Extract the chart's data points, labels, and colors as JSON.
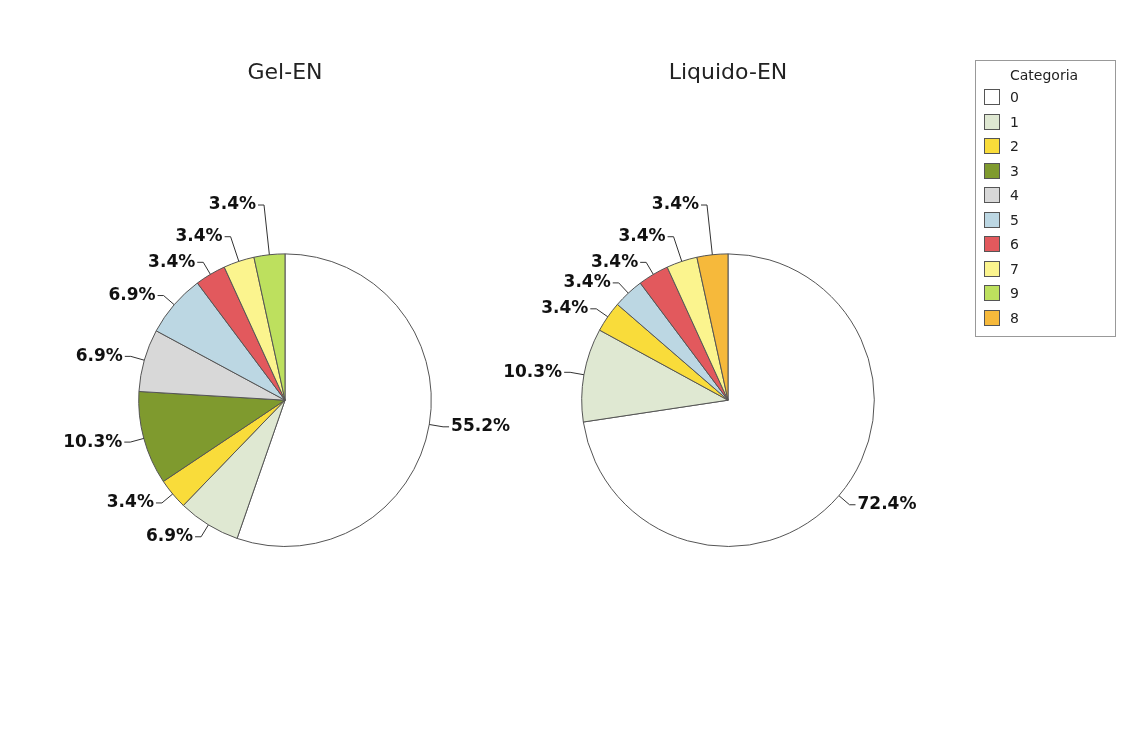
{
  "chart_data": {
    "type": "pie",
    "categories": [
      "0",
      "1",
      "2",
      "3",
      "4",
      "5",
      "6",
      "7",
      "9",
      "8"
    ],
    "colors": [
      "#ffffff",
      "#dfe8d2",
      "#f9dc3a",
      "#7f9a2e",
      "#d8d8d8",
      "#bcd7e3",
      "#e2595d",
      "#fbf48e",
      "#bde05e",
      "#f6b93b"
    ],
    "series": [
      {
        "name": "Gel-EN",
        "values": [
          55.2,
          6.9,
          3.4,
          10.3,
          6.9,
          6.9,
          3.4,
          3.4,
          3.4,
          0
        ],
        "value_labels": [
          "55.2%",
          "6.9%",
          "3.4%",
          "10.3%",
          "6.9%",
          "6.9%",
          "3.4%",
          "3.4%",
          "3.4%",
          null
        ]
      },
      {
        "name": "Liquido-EN",
        "values": [
          72.4,
          10.3,
          3.4,
          0,
          0,
          3.4,
          3.4,
          3.4,
          0,
          3.4
        ],
        "value_labels": [
          "72.4%",
          "10.3%",
          "3.4%",
          null,
          null,
          "3.4%",
          "3.4%",
          "3.4%",
          null,
          "3.4%"
        ]
      }
    ],
    "legend": "top right",
    "legend_title": "Categoria"
  }
}
